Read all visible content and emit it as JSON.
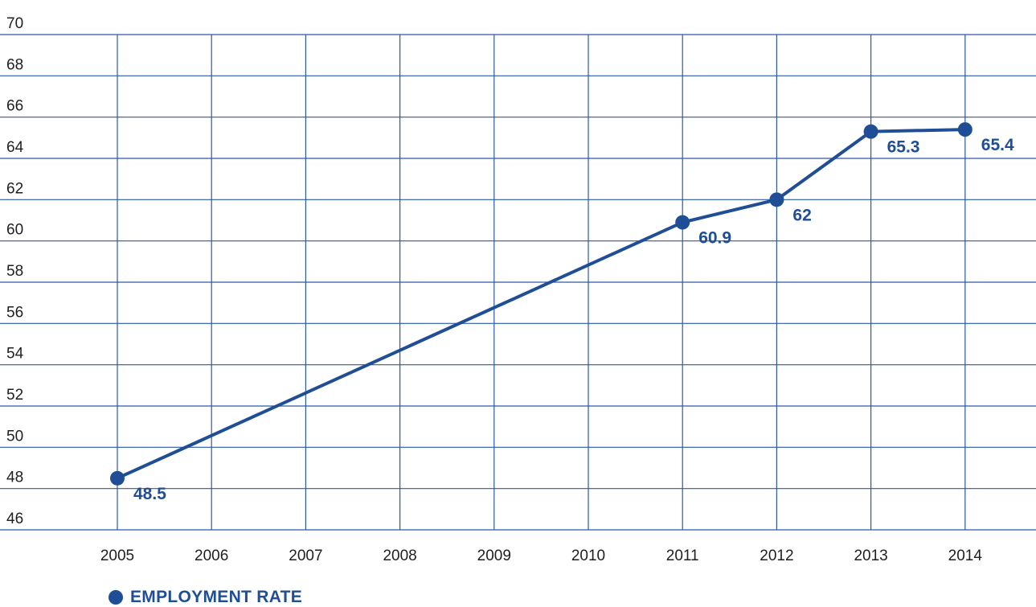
{
  "chart_data": {
    "type": "line",
    "categories": [
      "2005",
      "2006",
      "2007",
      "2008",
      "2009",
      "2010",
      "2011",
      "2012",
      "2013",
      "2014"
    ],
    "series": [
      {
        "name": "EMPLOYMENT RATE",
        "points": [
          {
            "x": "2005",
            "y": 48.5
          },
          {
            "x": "2011",
            "y": 60.9
          },
          {
            "x": "2012",
            "y": 62
          },
          {
            "x": "2013",
            "y": 65.3
          },
          {
            "x": "2014",
            "y": 65.4
          }
        ]
      }
    ],
    "title": "",
    "xlabel": "",
    "ylabel": "",
    "ylim": [
      46,
      70
    ],
    "yticks": [
      46,
      48,
      50,
      52,
      54,
      56,
      58,
      60,
      62,
      64,
      66,
      68,
      70
    ],
    "grid": true,
    "legend_position": "bottom-left",
    "color": "#1f4e96"
  }
}
